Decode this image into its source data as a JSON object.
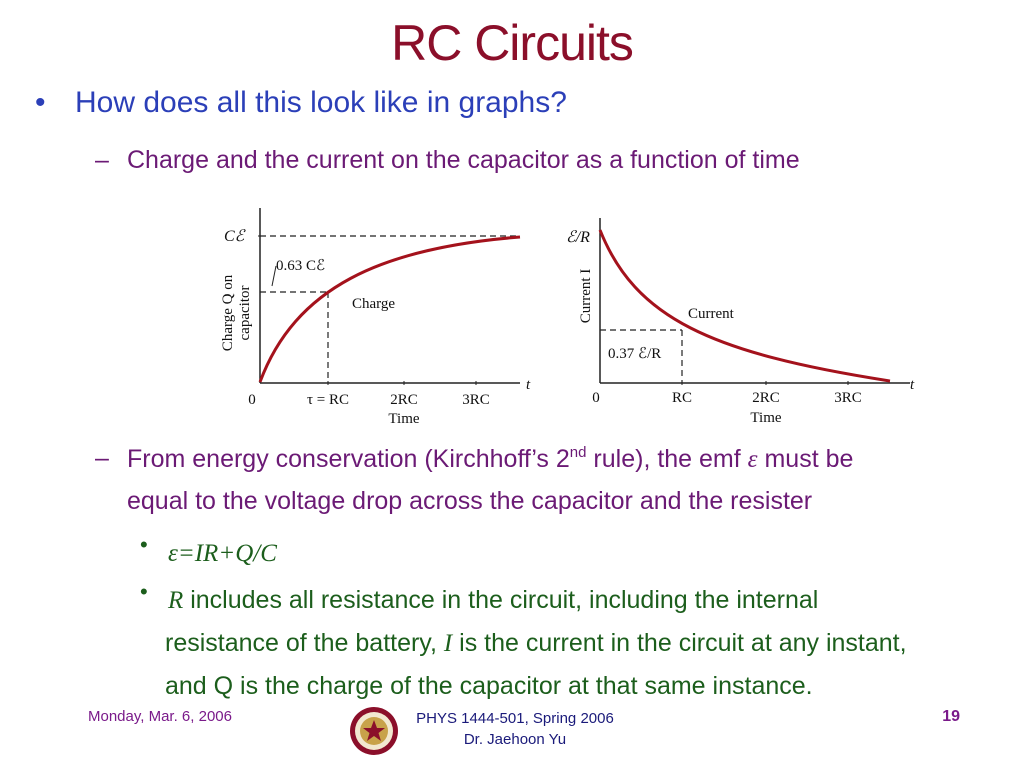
{
  "slide": {
    "title": "RC Circuits",
    "bullet1": "How does all this look like in graphs?",
    "sub1": "Charge and the current on the capacitor as a function of time",
    "sub2_part1": "From energy conservation (Kirchhoff’s 2",
    "sub2_sup": "nd",
    "sub2_part2": " rule), the emf ",
    "sub2_emf": "ε",
    "sub2_part3": " must be",
    "sub2_line2": "equal to the voltage drop across the capacitor and the resister",
    "eq": "ε=IR+Q/C",
    "p2_R": "R",
    "p2_a": " includes all resistance in the circuit, including the internal",
    "p2_b_pre": "resistance of the battery, ",
    "p2_I": "I",
    "p2_b_post": " is the current in the circuit at any instant,",
    "p2_c": "and Q is the charge of the capacitor at that same instance.",
    "bullet_dot": "•",
    "dash": "–"
  },
  "footer": {
    "date": "Monday, Mar. 6, 2006",
    "course": "PHYS 1444-501, Spring 2006",
    "author": "Dr. Jaehoon Yu",
    "page": "19"
  },
  "figures": {
    "charge": {
      "ylabel_1": "Charge Q on",
      "ylabel_2": "capacitor",
      "top_label": "Cℰ",
      "mark_label": "0.63 Cℰ",
      "curve_label": "Charge",
      "xlabel": "Time",
      "axis_t": "t",
      "ticks": [
        "0",
        "τ = RC",
        "2RC",
        "3RC"
      ]
    },
    "current": {
      "ylabel": "Current I",
      "top_label": "ℰ/R",
      "mark_label": "0.37 ℰ/R",
      "curve_label": "Current",
      "xlabel": "Time",
      "axis_t": "t",
      "ticks": [
        "0",
        "RC",
        "2RC",
        "3RC"
      ]
    }
  },
  "colors": {
    "title": "#8b0f2a",
    "bullet1": "#2b3fb8",
    "sub": "#6b1a75",
    "green": "#1c5e1c",
    "curve": "#a4121c"
  }
}
